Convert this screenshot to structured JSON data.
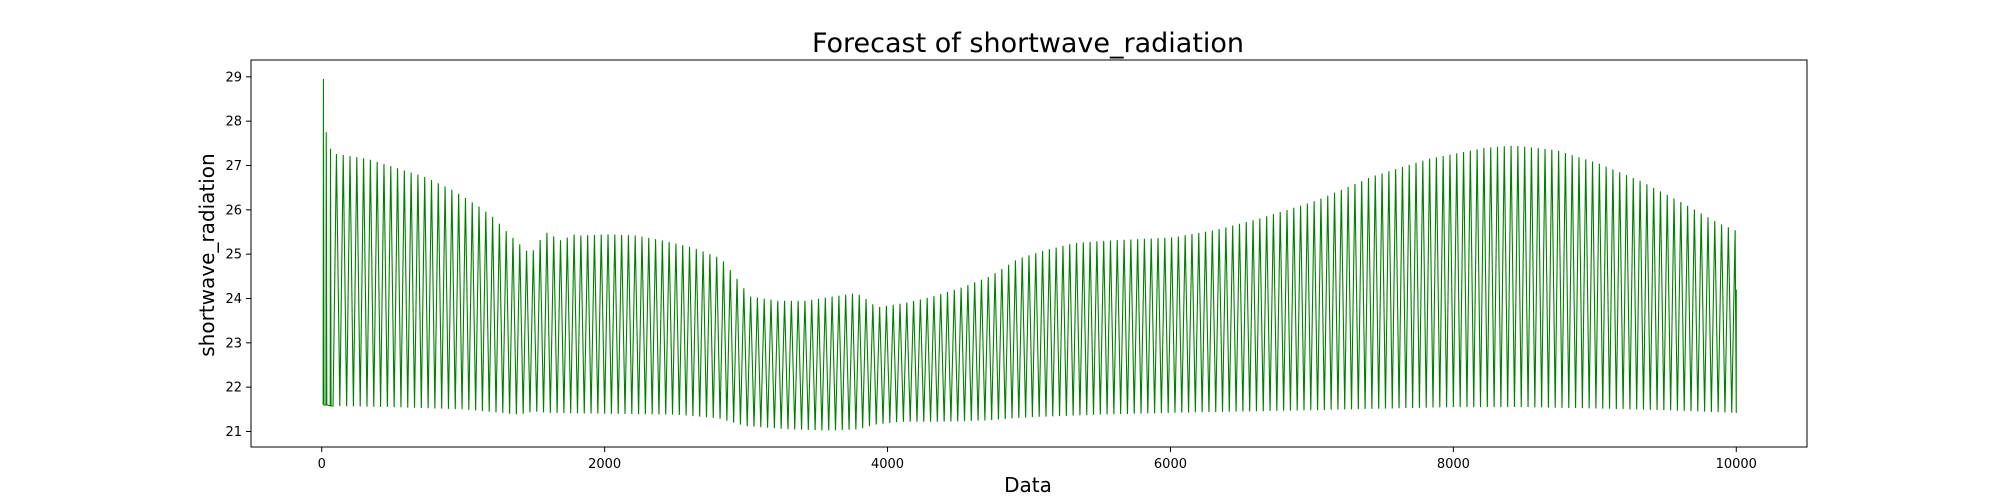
{
  "chart_data": {
    "type": "line",
    "title": "Forecast of shortwave_radiation",
    "xlabel": "Data",
    "ylabel": "shortwave_radiation",
    "xlim": [
      -500,
      10500
    ],
    "ylim": [
      20.65,
      29.38
    ],
    "x_ticks": [
      0,
      2000,
      4000,
      6000,
      8000,
      10000
    ],
    "y_ticks": [
      21,
      22,
      23,
      24,
      25,
      26,
      27,
      28,
      29
    ],
    "grid": false,
    "legend": "none",
    "series": [
      {
        "color": "#008000",
        "samples_x_range": [
          0,
          10000
        ],
        "oscillation_period": 48,
        "initial_spikes": [
          {
            "x": 10,
            "high": 28.95,
            "low": 21.6
          },
          {
            "x": 30,
            "high": 27.75,
            "low": 21.6
          },
          {
            "x": 60,
            "high": 27.38,
            "low": 21.58
          }
        ],
        "upper_envelope": [
          [
            0,
            27.3
          ],
          [
            100,
            27.25
          ],
          [
            300,
            27.15
          ],
          [
            500,
            26.95
          ],
          [
            700,
            26.75
          ],
          [
            900,
            26.45
          ],
          [
            1100,
            26.05
          ],
          [
            1200,
            25.8
          ],
          [
            1300,
            25.45
          ],
          [
            1400,
            25.15
          ],
          [
            1450,
            25.0
          ],
          [
            1500,
            25.2
          ],
          [
            1550,
            25.5
          ],
          [
            1600,
            25.45
          ],
          [
            1650,
            25.3
          ],
          [
            1700,
            25.35
          ],
          [
            1750,
            25.45
          ],
          [
            1800,
            25.42
          ],
          [
            2000,
            25.45
          ],
          [
            2200,
            25.42
          ],
          [
            2400,
            25.3
          ],
          [
            2600,
            25.15
          ],
          [
            2800,
            24.9
          ],
          [
            2900,
            24.5
          ],
          [
            3000,
            24.05
          ],
          [
            3200,
            23.95
          ],
          [
            3400,
            23.95
          ],
          [
            3600,
            24.05
          ],
          [
            3750,
            24.12
          ],
          [
            3800,
            24.05
          ],
          [
            3900,
            23.8
          ],
          [
            4100,
            23.9
          ],
          [
            4300,
            24.05
          ],
          [
            4500,
            24.25
          ],
          [
            4700,
            24.5
          ],
          [
            4900,
            24.9
          ],
          [
            5100,
            25.1
          ],
          [
            5300,
            25.25
          ],
          [
            5500,
            25.3
          ],
          [
            6000,
            25.38
          ],
          [
            6300,
            25.55
          ],
          [
            6600,
            25.8
          ],
          [
            7000,
            26.2
          ],
          [
            7400,
            26.75
          ],
          [
            7800,
            27.15
          ],
          [
            8200,
            27.4
          ],
          [
            8400,
            27.45
          ],
          [
            8700,
            27.35
          ],
          [
            9000,
            27.05
          ],
          [
            9300,
            26.65
          ],
          [
            9600,
            26.15
          ],
          [
            9850,
            25.7
          ],
          [
            10000,
            25.5
          ]
        ],
        "lower_envelope": [
          [
            0,
            21.58
          ],
          [
            500,
            21.55
          ],
          [
            1000,
            21.5
          ],
          [
            1400,
            21.38
          ],
          [
            1500,
            21.45
          ],
          [
            1600,
            21.42
          ],
          [
            2000,
            21.4
          ],
          [
            2500,
            21.38
          ],
          [
            2800,
            21.3
          ],
          [
            3000,
            21.12
          ],
          [
            3300,
            21.05
          ],
          [
            3600,
            21.02
          ],
          [
            3800,
            21.05
          ],
          [
            3900,
            21.15
          ],
          [
            4100,
            21.22
          ],
          [
            4400,
            21.22
          ],
          [
            4700,
            21.25
          ],
          [
            5000,
            21.32
          ],
          [
            5500,
            21.38
          ],
          [
            6000,
            21.42
          ],
          [
            7000,
            21.48
          ],
          [
            8000,
            21.55
          ],
          [
            8500,
            21.55
          ],
          [
            9000,
            21.52
          ],
          [
            9500,
            21.48
          ],
          [
            10000,
            21.42
          ]
        ],
        "end_value": 24.2
      }
    ]
  }
}
